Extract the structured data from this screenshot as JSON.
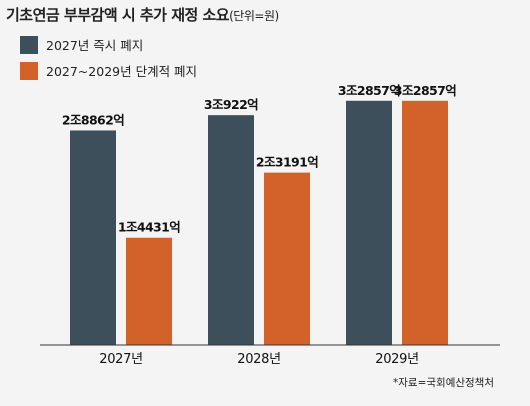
{
  "chart_data": {
    "type": "bar",
    "title": "기초연금 부부감액 시 추가 재정 소요",
    "unit_note": "(단위=원)",
    "categories": [
      "2027년",
      "2028년",
      "2029년"
    ],
    "series": [
      {
        "name": "2027년 즉시 폐지",
        "color": "#3d4f5a",
        "values": [
          28862,
          30922,
          32857
        ],
        "labels": [
          "2조8862억",
          "3조922억",
          "3조2857억"
        ]
      },
      {
        "name": "2027~2029년 단계적 폐지",
        "color": "#d2622a",
        "values": [
          14431,
          23191,
          32857
        ],
        "labels": [
          "1조4431억",
          "2조3191억",
          "3조2857억"
        ]
      }
    ],
    "ylim": [
      0,
      33500
    ],
    "grid": false,
    "legend_position": "top-left",
    "source": "*자료=국회예산정책처",
    "colors": {
      "background": "#f4f4f4",
      "axis": "#333333"
    }
  }
}
